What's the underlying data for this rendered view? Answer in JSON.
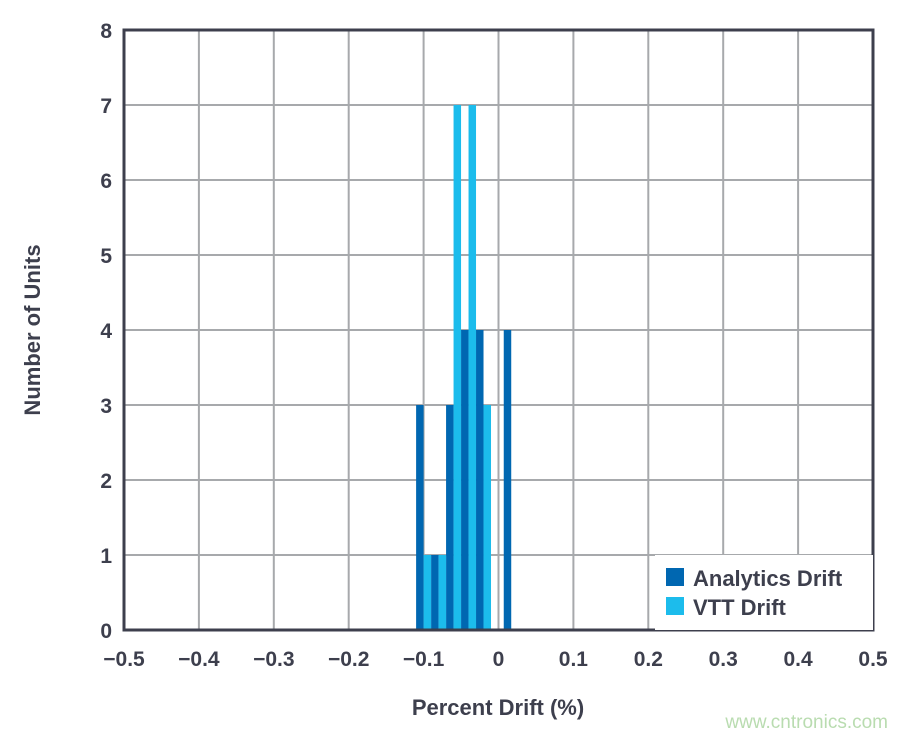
{
  "chart_data": {
    "type": "bar",
    "title": "",
    "xlabel": "Percent Drift (%)",
    "ylabel": "Number of Units",
    "xlim": [
      -0.5,
      0.5
    ],
    "ylim": [
      0,
      8
    ],
    "x_ticks": [
      "−0.5",
      "−0.4",
      "−0.3",
      "−0.2",
      "−0.1",
      "0",
      "0.1",
      "0.2",
      "0.3",
      "0.4",
      "0.5"
    ],
    "y_ticks": [
      "0",
      "1",
      "2",
      "3",
      "4",
      "5",
      "6",
      "7",
      "8"
    ],
    "grid": true,
    "legend_position": "bottom-right",
    "bar_width": 0.01,
    "series": [
      {
        "name": "Analytics Drift",
        "color": "#0067b1",
        "x": [
          -0.105,
          -0.085,
          -0.065,
          -0.045,
          -0.025,
          0.012
        ],
        "values": [
          3,
          1,
          3,
          4,
          4,
          4
        ]
      },
      {
        "name": "VTT Drift",
        "color": "#1cbcec",
        "x": [
          -0.095,
          -0.075,
          -0.055,
          -0.035,
          -0.015
        ],
        "values": [
          1,
          1,
          7,
          7,
          3
        ]
      }
    ]
  },
  "watermark": "www.cntronics.com",
  "colors": {
    "grid": "#a7a9ac",
    "frame": "#3d3f4d",
    "text": "#3d3f4d"
  }
}
